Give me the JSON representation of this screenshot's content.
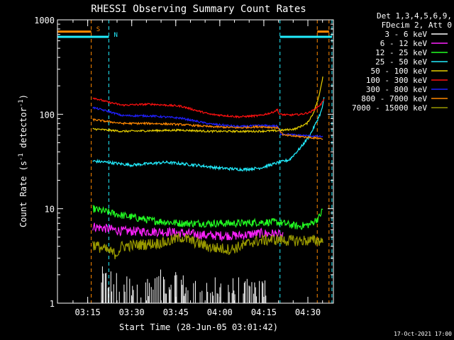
{
  "chart_data": {
    "type": "line",
    "title": "RHESSI Observing Summary Count Rates",
    "xlabel": "Start Time (28-Jun-05 03:01:42)",
    "ylabel": "Count Rate (s⁻¹ detector⁻¹)",
    "ylabel_parts": {
      "a": "Count Rate (s",
      "b": "-1",
      "c": " detector",
      "d": "-1",
      "e": ")"
    },
    "yscale": "log",
    "ylim": [
      1,
      1000
    ],
    "xlim_minutes": [
      3.0,
      97.0
    ],
    "y_ticks": [
      {
        "v": 1,
        "label": "1"
      },
      {
        "v": 10,
        "label": "10"
      },
      {
        "v": 100,
        "label": "100"
      },
      {
        "v": 1000,
        "label": "1000"
      }
    ],
    "x_ticks": [
      {
        "t": 13.3,
        "label": "03:15"
      },
      {
        "t": 28.3,
        "label": "03:30"
      },
      {
        "t": 43.3,
        "label": "03:45"
      },
      {
        "t": 58.3,
        "label": "04:00"
      },
      {
        "t": 73.3,
        "label": "04:15"
      },
      {
        "t": 88.3,
        "label": "04:30"
      }
    ],
    "legend": {
      "header": [
        "Det 1,3,4,5,6,9,",
        "FDecim 2, Att 0"
      ],
      "placement": "right",
      "entries": [
        {
          "label": "3 - 6 keV",
          "color": "#ffffff"
        },
        {
          "label": "6 - 12 keV",
          "color": "#ff22ff"
        },
        {
          "label": "12 - 25 keV",
          "color": "#22ff22"
        },
        {
          "label": "25 - 50 keV",
          "color": "#22eeff"
        },
        {
          "label": "50 - 100 keV",
          "color": "#e8d000"
        },
        {
          "label": "100 - 300 keV",
          "color": "#ff1010"
        },
        {
          "label": "300 - 800 keV",
          "color": "#2020ff"
        },
        {
          "label": "800 - 7000 keV",
          "color": "#ff8800"
        },
        {
          "label": "7000 - 15000 keV",
          "color": "#999900"
        }
      ]
    },
    "series": [
      {
        "name": "3 - 6 keV",
        "color": "#ffffff",
        "style": "spiky",
        "points": [
          [
            18,
            1.3
          ],
          [
            26,
            1.1
          ],
          [
            38,
            1.2
          ],
          [
            45,
            1.1
          ],
          [
            49,
            1.0
          ],
          [
            58,
            1.0
          ],
          [
            70,
            1.0
          ],
          [
            76,
            1.0
          ]
        ],
        "jitter": 0.35
      },
      {
        "name": "6 - 12 keV",
        "color": "#ff22ff",
        "style": "noisy",
        "points": [
          [
            15,
            6.5
          ],
          [
            25,
            5.8
          ],
          [
            40,
            5.7
          ],
          [
            55,
            5.2
          ],
          [
            65,
            5.2
          ],
          [
            72,
            5.5
          ],
          [
            78,
            5.4
          ],
          [
            80,
            5.0
          ]
        ],
        "jitter": 0.1
      },
      {
        "name": "12 - 25 keV",
        "color": "#22ff22",
        "style": "noisy",
        "points": [
          [
            15,
            10.0
          ],
          [
            25,
            8.5
          ],
          [
            35,
            7.5
          ],
          [
            45,
            7.0
          ],
          [
            55,
            7.0
          ],
          [
            65,
            7.0
          ],
          [
            72,
            7.2
          ],
          [
            78,
            7.2
          ],
          [
            85,
            6.5
          ],
          [
            89,
            6.8
          ],
          [
            92,
            8.0
          ],
          [
            93.5,
            10.0
          ]
        ],
        "jitter": 0.08
      },
      {
        "name": "25 - 50 keV",
        "color": "#22eeff",
        "style": "noisy",
        "points": [
          [
            15,
            32
          ],
          [
            20,
            31
          ],
          [
            28,
            29
          ],
          [
            40,
            31
          ],
          [
            50,
            29
          ],
          [
            58,
            27
          ],
          [
            66,
            26
          ],
          [
            72,
            27
          ],
          [
            77,
            30
          ],
          [
            82,
            33
          ],
          [
            86,
            45
          ],
          [
            89,
            60
          ],
          [
            91,
            80
          ],
          [
            93,
            110
          ],
          [
            94,
            160
          ]
        ],
        "jitter": 0.03
      },
      {
        "name": "50 - 100 keV",
        "color": "#e8d000",
        "style": "noisy",
        "points": [
          [
            15,
            70
          ],
          [
            20,
            68
          ],
          [
            25,
            66
          ],
          [
            35,
            67
          ],
          [
            45,
            68
          ],
          [
            55,
            66
          ],
          [
            60,
            66
          ],
          [
            70,
            66
          ],
          [
            78,
            67
          ],
          [
            84,
            70
          ],
          [
            88,
            80
          ],
          [
            90,
            100
          ],
          [
            92,
            150
          ],
          [
            93.5,
            260
          ]
        ],
        "jitter": 0.02
      },
      {
        "name": "100 - 300 keV",
        "color": "#ff1010",
        "style": "noisy",
        "points": [
          [
            15,
            150
          ],
          [
            20,
            135
          ],
          [
            25,
            125
          ],
          [
            35,
            128
          ],
          [
            45,
            122
          ],
          [
            55,
            100
          ],
          [
            65,
            94
          ],
          [
            72,
            97
          ],
          [
            76,
            104
          ],
          [
            78,
            112
          ],
          [
            78.5,
            100
          ],
          [
            82,
            98
          ],
          [
            86,
            100
          ],
          [
            89,
            105
          ],
          [
            91,
            115
          ],
          [
            93,
            130
          ],
          [
            94,
            152
          ]
        ],
        "jitter": 0.02
      },
      {
        "name": "300 - 800 keV",
        "color": "#2020ff",
        "style": "noisy",
        "points": [
          [
            15,
            118
          ],
          [
            20,
            108
          ],
          [
            25,
            97
          ],
          [
            35,
            96
          ],
          [
            45,
            91
          ],
          [
            55,
            79
          ],
          [
            65,
            74
          ],
          [
            72,
            76
          ],
          [
            78,
            75
          ],
          [
            79,
            62
          ],
          [
            85,
            60
          ],
          [
            93.5,
            58
          ]
        ],
        "jitter": 0.02
      },
      {
        "name": "800 - 7000 keV",
        "color": "#ff8800",
        "style": "noisy",
        "points": [
          [
            15,
            88
          ],
          [
            20,
            84
          ],
          [
            25,
            80
          ],
          [
            35,
            80
          ],
          [
            45,
            78
          ],
          [
            55,
            74
          ],
          [
            65,
            72
          ],
          [
            72,
            74
          ],
          [
            78,
            72
          ],
          [
            80,
            60
          ],
          [
            86,
            58
          ],
          [
            93.5,
            55
          ]
        ],
        "jitter": 0.02
      },
      {
        "name": "7000 - 15000 keV",
        "color": "#999900",
        "style": "noisy",
        "points": [
          [
            15,
            4.2
          ],
          [
            23,
            3.3
          ],
          [
            25,
            4.0
          ],
          [
            40,
            4.4
          ],
          [
            45,
            5.0
          ],
          [
            55,
            3.9
          ],
          [
            62,
            3.7
          ],
          [
            70,
            4.5
          ],
          [
            75,
            4.7
          ],
          [
            78,
            4.7
          ],
          [
            81,
            4.6
          ],
          [
            86,
            4.6
          ],
          [
            93.5,
            4.6
          ]
        ],
        "jitter": 0.12
      }
    ],
    "annotations": [
      {
        "label": "S",
        "color": "#ff8800",
        "t": 15.5,
        "row": "upper"
      },
      {
        "label": "N",
        "color": "#22eeff",
        "t": 21.5,
        "row": "lower"
      }
    ],
    "intervals": {
      "saa": {
        "color": "#ff8800",
        "style": "dashed",
        "bounds": [
          [
            null,
            14.5
          ],
          [
            91.5,
            95.5
          ]
        ],
        "level": 750
      },
      "night": {
        "color": "#22eeff",
        "style": "dashed",
        "bounds": [
          [
            null,
            20.5
          ],
          [
            78.8,
            96.5
          ]
        ],
        "level": 660
      }
    },
    "footer_timestamp": "17-Oct-2021 17:00"
  }
}
